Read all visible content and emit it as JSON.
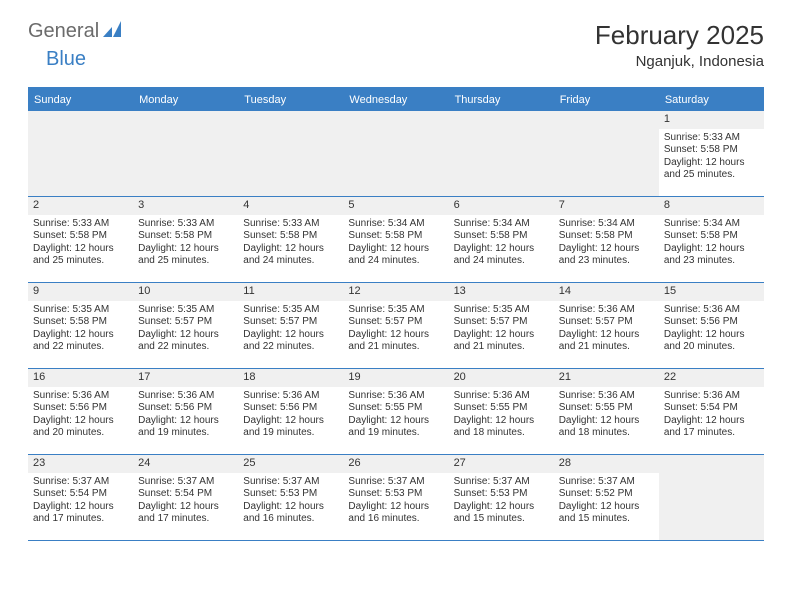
{
  "brand": {
    "part1": "General",
    "part2": "Blue"
  },
  "title": "February 2025",
  "location": "Nganjuk, Indonesia",
  "colors": {
    "accent": "#3a7fc4",
    "text": "#333333",
    "grayText": "#6b6b6b",
    "cellHeaderBg": "#f0f0f0",
    "background": "#ffffff"
  },
  "typography": {
    "title_fontsize": 26,
    "location_fontsize": 15,
    "weekday_fontsize": 11,
    "cell_fontsize": 10,
    "daynum_fontsize": 11,
    "logo_fontsize": 20
  },
  "layout": {
    "columns": 7,
    "rows": 5,
    "leading_empty": 6
  },
  "weekdays": [
    "Sunday",
    "Monday",
    "Tuesday",
    "Wednesday",
    "Thursday",
    "Friday",
    "Saturday"
  ],
  "days": [
    {
      "n": "1",
      "sunrise": "Sunrise: 5:33 AM",
      "sunset": "Sunset: 5:58 PM",
      "daylight1": "Daylight: 12 hours",
      "daylight2": "and 25 minutes."
    },
    {
      "n": "2",
      "sunrise": "Sunrise: 5:33 AM",
      "sunset": "Sunset: 5:58 PM",
      "daylight1": "Daylight: 12 hours",
      "daylight2": "and 25 minutes."
    },
    {
      "n": "3",
      "sunrise": "Sunrise: 5:33 AM",
      "sunset": "Sunset: 5:58 PM",
      "daylight1": "Daylight: 12 hours",
      "daylight2": "and 25 minutes."
    },
    {
      "n": "4",
      "sunrise": "Sunrise: 5:33 AM",
      "sunset": "Sunset: 5:58 PM",
      "daylight1": "Daylight: 12 hours",
      "daylight2": "and 24 minutes."
    },
    {
      "n": "5",
      "sunrise": "Sunrise: 5:34 AM",
      "sunset": "Sunset: 5:58 PM",
      "daylight1": "Daylight: 12 hours",
      "daylight2": "and 24 minutes."
    },
    {
      "n": "6",
      "sunrise": "Sunrise: 5:34 AM",
      "sunset": "Sunset: 5:58 PM",
      "daylight1": "Daylight: 12 hours",
      "daylight2": "and 24 minutes."
    },
    {
      "n": "7",
      "sunrise": "Sunrise: 5:34 AM",
      "sunset": "Sunset: 5:58 PM",
      "daylight1": "Daylight: 12 hours",
      "daylight2": "and 23 minutes."
    },
    {
      "n": "8",
      "sunrise": "Sunrise: 5:34 AM",
      "sunset": "Sunset: 5:58 PM",
      "daylight1": "Daylight: 12 hours",
      "daylight2": "and 23 minutes."
    },
    {
      "n": "9",
      "sunrise": "Sunrise: 5:35 AM",
      "sunset": "Sunset: 5:58 PM",
      "daylight1": "Daylight: 12 hours",
      "daylight2": "and 22 minutes."
    },
    {
      "n": "10",
      "sunrise": "Sunrise: 5:35 AM",
      "sunset": "Sunset: 5:57 PM",
      "daylight1": "Daylight: 12 hours",
      "daylight2": "and 22 minutes."
    },
    {
      "n": "11",
      "sunrise": "Sunrise: 5:35 AM",
      "sunset": "Sunset: 5:57 PM",
      "daylight1": "Daylight: 12 hours",
      "daylight2": "and 22 minutes."
    },
    {
      "n": "12",
      "sunrise": "Sunrise: 5:35 AM",
      "sunset": "Sunset: 5:57 PM",
      "daylight1": "Daylight: 12 hours",
      "daylight2": "and 21 minutes."
    },
    {
      "n": "13",
      "sunrise": "Sunrise: 5:35 AM",
      "sunset": "Sunset: 5:57 PM",
      "daylight1": "Daylight: 12 hours",
      "daylight2": "and 21 minutes."
    },
    {
      "n": "14",
      "sunrise": "Sunrise: 5:36 AM",
      "sunset": "Sunset: 5:57 PM",
      "daylight1": "Daylight: 12 hours",
      "daylight2": "and 21 minutes."
    },
    {
      "n": "15",
      "sunrise": "Sunrise: 5:36 AM",
      "sunset": "Sunset: 5:56 PM",
      "daylight1": "Daylight: 12 hours",
      "daylight2": "and 20 minutes."
    },
    {
      "n": "16",
      "sunrise": "Sunrise: 5:36 AM",
      "sunset": "Sunset: 5:56 PM",
      "daylight1": "Daylight: 12 hours",
      "daylight2": "and 20 minutes."
    },
    {
      "n": "17",
      "sunrise": "Sunrise: 5:36 AM",
      "sunset": "Sunset: 5:56 PM",
      "daylight1": "Daylight: 12 hours",
      "daylight2": "and 19 minutes."
    },
    {
      "n": "18",
      "sunrise": "Sunrise: 5:36 AM",
      "sunset": "Sunset: 5:56 PM",
      "daylight1": "Daylight: 12 hours",
      "daylight2": "and 19 minutes."
    },
    {
      "n": "19",
      "sunrise": "Sunrise: 5:36 AM",
      "sunset": "Sunset: 5:55 PM",
      "daylight1": "Daylight: 12 hours",
      "daylight2": "and 19 minutes."
    },
    {
      "n": "20",
      "sunrise": "Sunrise: 5:36 AM",
      "sunset": "Sunset: 5:55 PM",
      "daylight1": "Daylight: 12 hours",
      "daylight2": "and 18 minutes."
    },
    {
      "n": "21",
      "sunrise": "Sunrise: 5:36 AM",
      "sunset": "Sunset: 5:55 PM",
      "daylight1": "Daylight: 12 hours",
      "daylight2": "and 18 minutes."
    },
    {
      "n": "22",
      "sunrise": "Sunrise: 5:36 AM",
      "sunset": "Sunset: 5:54 PM",
      "daylight1": "Daylight: 12 hours",
      "daylight2": "and 17 minutes."
    },
    {
      "n": "23",
      "sunrise": "Sunrise: 5:37 AM",
      "sunset": "Sunset: 5:54 PM",
      "daylight1": "Daylight: 12 hours",
      "daylight2": "and 17 minutes."
    },
    {
      "n": "24",
      "sunrise": "Sunrise: 5:37 AM",
      "sunset": "Sunset: 5:54 PM",
      "daylight1": "Daylight: 12 hours",
      "daylight2": "and 17 minutes."
    },
    {
      "n": "25",
      "sunrise": "Sunrise: 5:37 AM",
      "sunset": "Sunset: 5:53 PM",
      "daylight1": "Daylight: 12 hours",
      "daylight2": "and 16 minutes."
    },
    {
      "n": "26",
      "sunrise": "Sunrise: 5:37 AM",
      "sunset": "Sunset: 5:53 PM",
      "daylight1": "Daylight: 12 hours",
      "daylight2": "and 16 minutes."
    },
    {
      "n": "27",
      "sunrise": "Sunrise: 5:37 AM",
      "sunset": "Sunset: 5:53 PM",
      "daylight1": "Daylight: 12 hours",
      "daylight2": "and 15 minutes."
    },
    {
      "n": "28",
      "sunrise": "Sunrise: 5:37 AM",
      "sunset": "Sunset: 5:52 PM",
      "daylight1": "Daylight: 12 hours",
      "daylight2": "and 15 minutes."
    }
  ]
}
